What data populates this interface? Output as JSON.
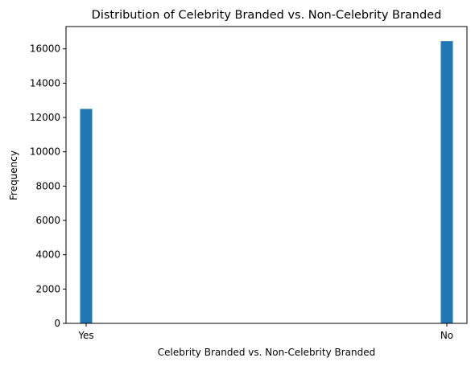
{
  "chart_data": {
    "type": "bar",
    "title": "Distribution of Celebrity Branded vs. Non-Celebrity Branded",
    "xlabel": "Celebrity Branded vs. Non-Celebrity Branded",
    "ylabel": "Frequency",
    "categories": [
      "Yes",
      "No"
    ],
    "values": [
      12500,
      16450
    ],
    "ylim": [
      0,
      17300
    ],
    "yticks": [
      0,
      2000,
      4000,
      6000,
      8000,
      10000,
      12000,
      14000,
      16000
    ],
    "grid": false,
    "bar_color": "#1f77b4"
  }
}
